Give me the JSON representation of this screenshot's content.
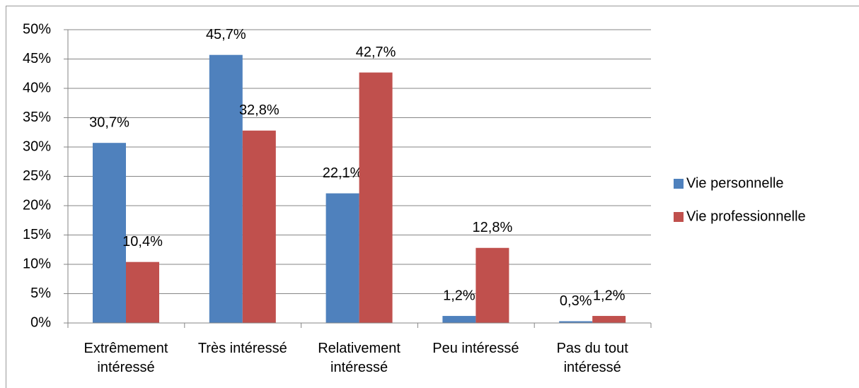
{
  "chart_data": {
    "type": "bar",
    "categories": [
      "Extrêmement intéressé",
      "Très intéressé",
      "Relativement intéressé",
      "Peu intéressé",
      "Pas du tout intéressé"
    ],
    "series": [
      {
        "name": "Vie personnelle",
        "color": "#4f81bd",
        "values": [
          30.7,
          45.7,
          22.1,
          1.2,
          0.3
        ],
        "value_labels": [
          "30,7%",
          "45,7%",
          "22,1%",
          "1,2%",
          "0,3%"
        ]
      },
      {
        "name": "Vie professionnelle",
        "color": "#c0504d",
        "values": [
          10.4,
          32.8,
          42.7,
          12.8,
          1.2
        ],
        "value_labels": [
          "10,4%",
          "32,8%",
          "42,7%",
          "12,8%",
          "1,2%"
        ]
      }
    ],
    "ylim": [
      0,
      50
    ],
    "yticks": [
      {
        "value": 0,
        "label": "0%"
      },
      {
        "value": 5,
        "label": "5%"
      },
      {
        "value": 10,
        "label": "10%"
      },
      {
        "value": 15,
        "label": "15%"
      },
      {
        "value": 20,
        "label": "20%"
      },
      {
        "value": 25,
        "label": "25%"
      },
      {
        "value": 30,
        "label": "30%"
      },
      {
        "value": 35,
        "label": "35%"
      },
      {
        "value": 40,
        "label": "40%"
      },
      {
        "value": 45,
        "label": "45%"
      },
      {
        "value": 50,
        "label": "50%"
      }
    ],
    "grid": true,
    "legend": "right"
  }
}
